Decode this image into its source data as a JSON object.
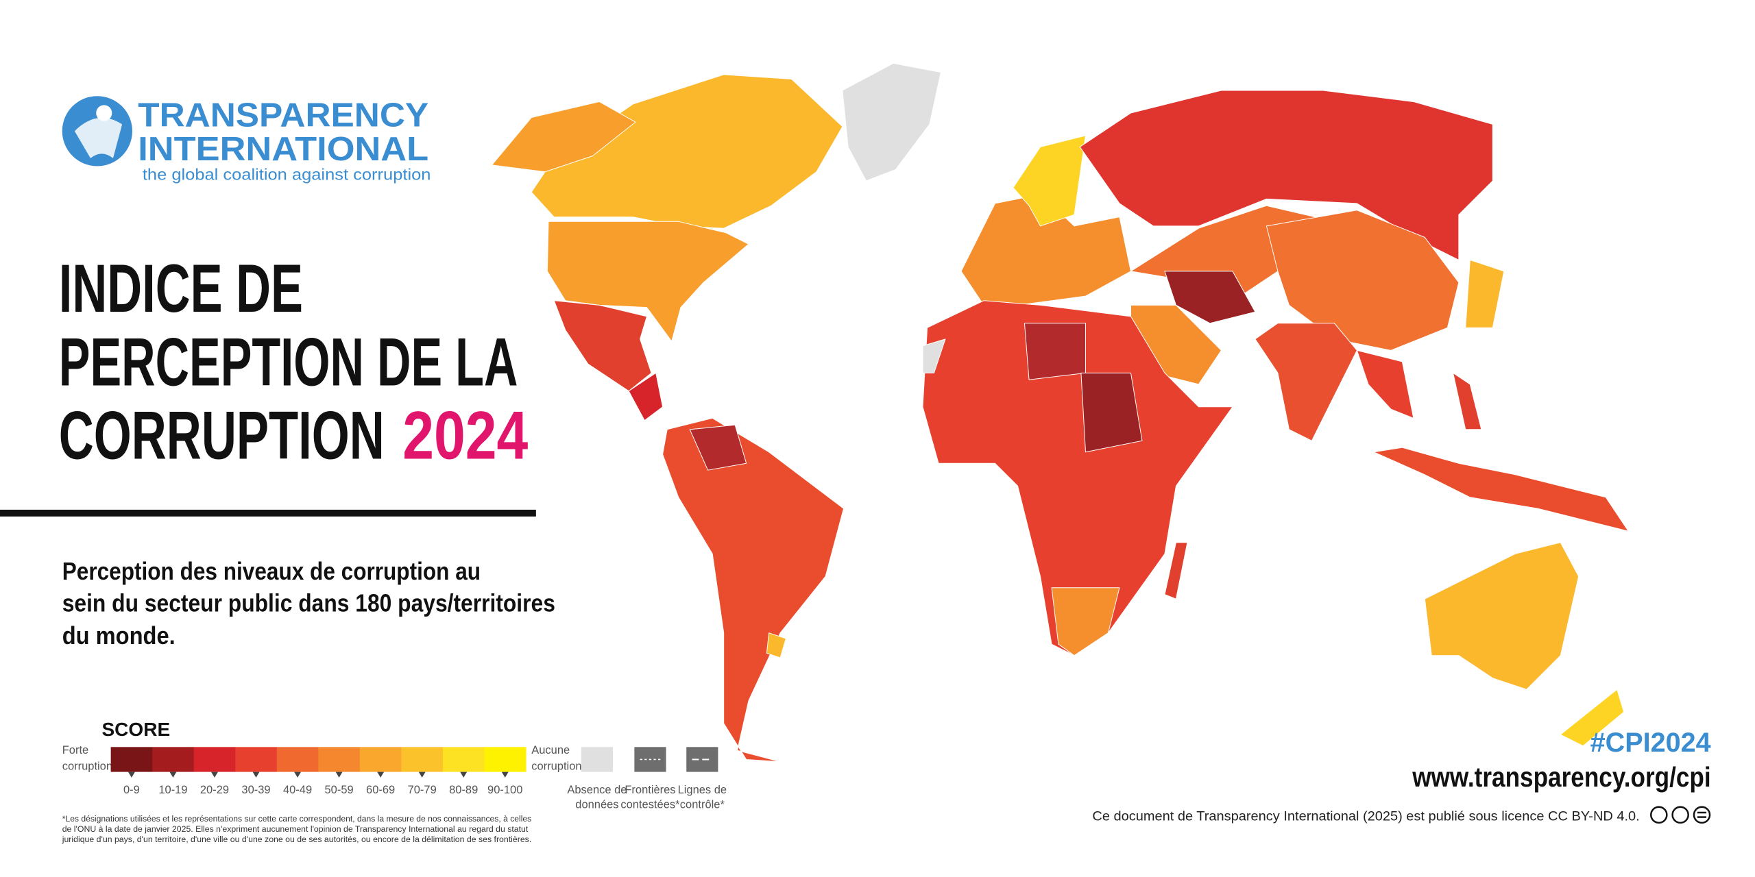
{
  "logo": {
    "name_line1": "TRANSPARENCY",
    "name_line2": "INTERNATIONAL",
    "tagline": "the global coalition against corruption"
  },
  "title": {
    "line1": "INDICE DE",
    "line2": "PERCEPTION DE LA",
    "line3": "CORRUPTION",
    "year": "2024"
  },
  "subtitle": [
    "Perception des niveaux de corruption au",
    "sein du secteur public dans 180 pays/territoires",
    "du monde."
  ],
  "legend": {
    "title": "SCORE",
    "low_label": [
      "Forte",
      "corruption"
    ],
    "high_label": [
      "Aucune",
      "corruption"
    ],
    "bins": [
      {
        "label": "0-9",
        "color": "#7a1517"
      },
      {
        "label": "10-19",
        "color": "#a51c1e"
      },
      {
        "label": "20-29",
        "color": "#d7242a"
      },
      {
        "label": "30-39",
        "color": "#e8402e"
      },
      {
        "label": "40-49",
        "color": "#f06a2f"
      },
      {
        "label": "50-59",
        "color": "#f5882e"
      },
      {
        "label": "60-69",
        "color": "#f9a82d"
      },
      {
        "label": "70-79",
        "color": "#fcc22b"
      },
      {
        "label": "80-89",
        "color": "#fde223"
      },
      {
        "label": "90-100",
        "color": "#fff200"
      }
    ],
    "no_data": [
      "Absence de",
      "données"
    ],
    "disputed": [
      "Frontières",
      "contestées*"
    ],
    "control": [
      "Lignes de",
      "contrôle*"
    ]
  },
  "footnote": [
    "*Les désignations utilisées et les représentations sur cette carte correspondent, dans la mesure de nos connaissances, à celles",
    "de l'ONU à la date de janvier 2025. Elles n'expriment aucunement l'opinion de Transparency International au regard du statut",
    "juridique d'un pays, d'un territoire, d'une ville ou d'une zone ou de ses autorités, ou encore de la délimitation de ses frontières."
  ],
  "hashtag": "#CPI2024",
  "url": "www.transparency.org/cpi",
  "license": "Ce document de Transparency International (2025) est publié sous licence CC BY-ND 4.0."
}
